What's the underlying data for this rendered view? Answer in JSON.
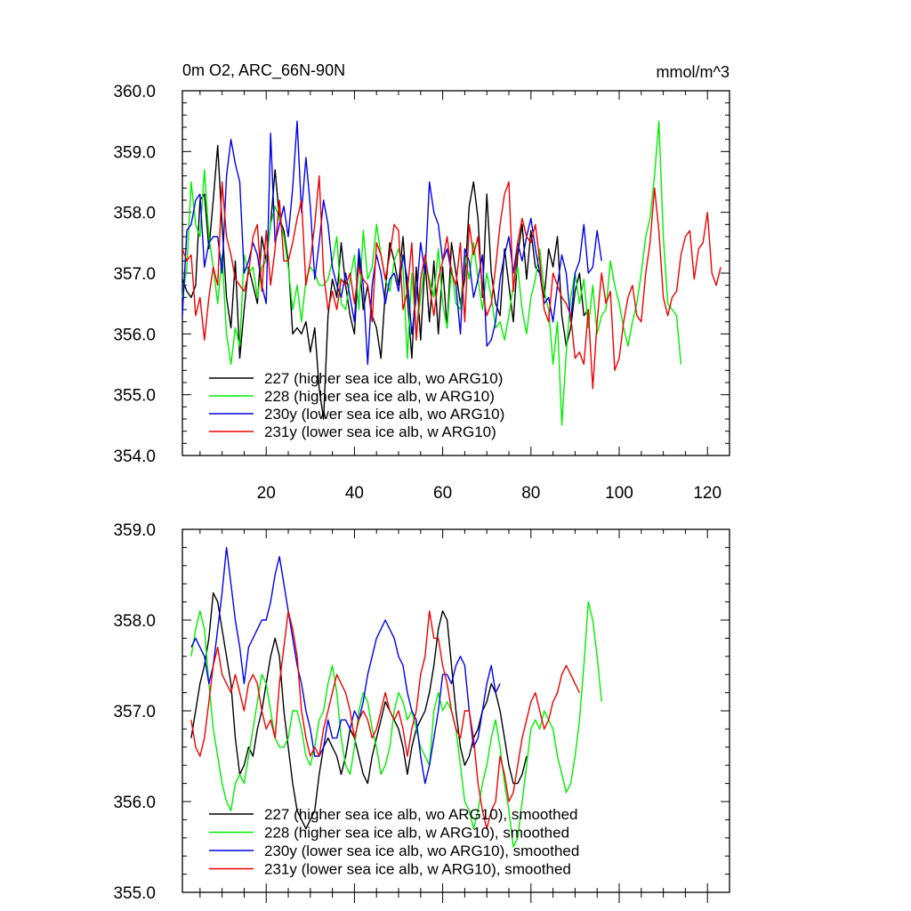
{
  "header": {
    "title": "0m O2, ARC_66N-90N",
    "units": "mmol/m^3"
  },
  "colors": {
    "227": "#000000",
    "228": "#00ee00",
    "230y": "#0000ee",
    "231y": "#ee0000"
  },
  "chart_data": [
    {
      "type": "line",
      "xlim": [
        1,
        125
      ],
      "ylim": [
        354,
        360
      ],
      "xticks": [
        20,
        40,
        60,
        80,
        100,
        120
      ],
      "yticks": [
        "354.0",
        "355.0",
        "356.0",
        "357.0",
        "358.0",
        "359.0",
        "360.0"
      ],
      "legend_position": "bottom-left",
      "series": [
        {
          "name": "227 (higher sea ice alb, wo ARG10)",
          "key": "227",
          "x_start": 1,
          "values": [
            356.9,
            356.7,
            356.6,
            356.8,
            358.2,
            358.3,
            357.4,
            358.2,
            359.1,
            357.8,
            356.6,
            356.1,
            357.2,
            355.6,
            356.4,
            357.1,
            356.8,
            356.5,
            357.6,
            357.2,
            357.8,
            358.7,
            357.9,
            357.7,
            357.2,
            356.0,
            356.1,
            356.0,
            356.2,
            355.7,
            356.1,
            355.1,
            354.6,
            356.3,
            356.9,
            356.6,
            357.5,
            356.8,
            356.3,
            356.0,
            357.3,
            356.4,
            356.8,
            356.3,
            356.1,
            355.6,
            356.7,
            357.5,
            357.2,
            356.8,
            357.6,
            356.6,
            355.6,
            357.1,
            355.9,
            357.2,
            356.2,
            357.2,
            356.0,
            357.1,
            356.1,
            357.5,
            357.0,
            356.5,
            356.9,
            358.1,
            358.5,
            357.9,
            356.6,
            358.3,
            357.0,
            356.5,
            356.3,
            357.4,
            356.8,
            356.2,
            357.3,
            357.8,
            356.9,
            357.7,
            357.1,
            357.0,
            356.6,
            357.4,
            357.1,
            357.6,
            356.3,
            355.8,
            356.1,
            356.7,
            357.0,
            356.3,
            356.4
          ]
        },
        {
          "name": "228 (higher sea ice alb, w ARG10)",
          "key": "228",
          "x_start": 1,
          "values": [
            356.6,
            357.1,
            358.5,
            357.8,
            357.6,
            358.7,
            357.6,
            357.1,
            356.5,
            357.3,
            356.0,
            355.5,
            356.1,
            355.8,
            357.3,
            357.0,
            357.1,
            356.6,
            357.1,
            357.2,
            357.8,
            358.1,
            357.9,
            357.6,
            357.1,
            356.4,
            356.8,
            356.2,
            356.9,
            357.1,
            357.0,
            356.8,
            356.8,
            356.9,
            357.2,
            357.6,
            356.5,
            356.4,
            356.9,
            357.3,
            356.4,
            357.7,
            356.9,
            357.1,
            357.8,
            357.3,
            356.9,
            356.7,
            357.2,
            357.4,
            357.1,
            355.6,
            357.0,
            356.0,
            356.6,
            357.2,
            356.9,
            356.6,
            357.4,
            356.5,
            356.1,
            357.1,
            356.5,
            356.4,
            357.3,
            356.9,
            357.5,
            356.9,
            356.4,
            357.0,
            356.6,
            356.1,
            356.2,
            355.9,
            356.3,
            356.8,
            357.1,
            356.4,
            356.0,
            356.6,
            356.9,
            357.4,
            356.7,
            356.4,
            355.5,
            356.2,
            354.5,
            355.7,
            356.6,
            357.0,
            356.5,
            356.9,
            356.1,
            356.8,
            356.0,
            356.3,
            356.4,
            357.2,
            356.8,
            356.5,
            356.1,
            355.8,
            356.2,
            356.5,
            357.0,
            357.6,
            357.9,
            358.6,
            359.5,
            357.6,
            356.5,
            356.4,
            356.3,
            355.5
          ]
        },
        {
          "name": "230y (lower sea ice alb, wo ARG10)",
          "key": "230y",
          "x_start": 1,
          "values": [
            356.3,
            357.7,
            357.8,
            358.2,
            358.3,
            357.1,
            357.5,
            357.6,
            357.6,
            357.0,
            358.6,
            359.2,
            358.8,
            358.5,
            357.0,
            357.2,
            357.5,
            357.3,
            356.8,
            356.5,
            359.3,
            357.5,
            357.8,
            358.1,
            357.6,
            358.4,
            359.5,
            358.0,
            358.9,
            358.1,
            356.9,
            357.5,
            358.2,
            357.8,
            357.1,
            356.8,
            356.6,
            357.0,
            356.6,
            356.2,
            357.4,
            356.8,
            355.5,
            356.8,
            357.3,
            357.0,
            356.5,
            356.9,
            357.0,
            356.7,
            357.3,
            356.9,
            356.0,
            356.6,
            357.5,
            357.0,
            358.5,
            358.0,
            357.8,
            357.2,
            357.4,
            357.0,
            356.8,
            356.0,
            357.4,
            357.2,
            356.6,
            356.9,
            357.3,
            355.8,
            355.9,
            356.2,
            356.9,
            357.3,
            357.6,
            357.0,
            357.5,
            357.2,
            357.6,
            357.9,
            357.4,
            357.0,
            356.5,
            356.6,
            356.2,
            356.8,
            357.3,
            357.0,
            356.2,
            357.0,
            357.2,
            357.8,
            357.0,
            357.1,
            357.7,
            357.2
          ]
        },
        {
          "name": "231y (lower sea ice alb, w ARG10)",
          "key": "231y",
          "x_start": 1,
          "values": [
            357.4,
            357.2,
            357.3,
            356.3,
            356.6,
            355.9,
            356.6,
            357.1,
            356.8,
            358.5,
            357.6,
            357.3,
            356.9,
            356.8,
            356.7,
            357.0,
            357.6,
            357.8,
            356.7,
            357.7,
            356.8,
            357.4,
            358.2,
            357.2,
            357.2,
            357.5,
            357.9,
            358.2,
            356.8,
            357.2,
            357.8,
            358.6,
            357.0,
            356.4,
            356.7,
            356.4,
            356.9,
            356.8,
            357.0,
            356.5,
            357.1,
            356.9,
            356.8,
            356.2,
            357.5,
            357.3,
            356.9,
            357.3,
            357.8,
            357.7,
            356.4,
            356.7,
            357.5,
            355.9,
            356.9,
            357.3,
            356.8,
            356.3,
            356.9,
            357.2,
            357.6,
            357.0,
            356.8,
            357.5,
            356.2,
            357.8,
            357.3,
            357.6,
            356.7,
            356.3,
            356.5,
            357.1,
            357.8,
            358.3,
            358.5,
            356.7,
            357.5,
            357.9,
            357.6,
            357.5,
            357.8,
            357.2,
            356.4,
            356.2,
            357.0,
            356.8,
            356.6,
            356.5,
            356.3,
            355.6,
            355.7,
            355.5,
            356.4,
            355.1,
            356.2,
            357.0,
            356.5,
            356.7,
            355.4,
            355.6,
            356.2,
            356.6,
            356.8,
            356.3,
            356.2,
            357.0,
            357.5,
            358.4,
            357.7,
            356.6,
            356.3,
            356.6,
            356.7,
            357.3,
            357.6,
            357.7,
            356.9,
            357.4,
            357.5,
            358.0,
            357.0,
            356.8,
            357.1
          ]
        }
      ]
    },
    {
      "type": "line",
      "xlim": [
        1,
        125
      ],
      "ylim": [
        355,
        359
      ],
      "yticks": [
        "355.0",
        "356.0",
        "357.0",
        "358.0",
        "359.0"
      ],
      "legend_position": "bottom-left",
      "series": [
        {
          "name": "227 (higher sea ice alb, wo ARG10), smoothed",
          "key": "227",
          "x_start": 3,
          "values": [
            356.7,
            357.0,
            357.3,
            357.5,
            357.8,
            358.3,
            358.2,
            357.9,
            357.6,
            357.3,
            356.7,
            356.3,
            356.4,
            356.6,
            356.5,
            356.8,
            357.0,
            357.3,
            357.6,
            357.8,
            357.6,
            357.0,
            356.6,
            356.2,
            355.9,
            355.8,
            355.7,
            355.8,
            355.9,
            356.3,
            356.6,
            356.7,
            356.6,
            356.5,
            356.3,
            356.5,
            356.8,
            356.7,
            356.5,
            356.3,
            356.2,
            356.5,
            356.7,
            356.9,
            357.1,
            357.0,
            356.9,
            356.8,
            356.6,
            356.3,
            356.6,
            356.8,
            356.9,
            357.0,
            357.2,
            357.5,
            357.9,
            358.1,
            358.0,
            357.5,
            357.0,
            356.6,
            356.4,
            356.5,
            356.7,
            356.8,
            357.0,
            357.1,
            357.3,
            357.2,
            357.0,
            356.7,
            356.4,
            356.2,
            356.2,
            356.3,
            356.5
          ]
        },
        {
          "name": "228 (higher sea ice alb, w ARG10), smoothed",
          "key": "228",
          "x_start": 3,
          "values": [
            357.6,
            357.9,
            358.1,
            357.9,
            357.3,
            356.8,
            356.5,
            356.2,
            356.0,
            355.9,
            356.2,
            356.3,
            356.2,
            356.5,
            356.8,
            357.1,
            357.4,
            357.3,
            357.0,
            356.7,
            356.6,
            356.6,
            356.7,
            357.0,
            357.0,
            356.8,
            356.5,
            356.4,
            356.6,
            356.9,
            357.0,
            357.3,
            357.5,
            357.2,
            356.7,
            356.4,
            356.3,
            356.6,
            357.0,
            357.2,
            357.1,
            356.8,
            356.6,
            356.3,
            356.4,
            356.6,
            357.0,
            357.2,
            357.1,
            356.9,
            357.0,
            356.8,
            356.6,
            356.5,
            356.4,
            357.0,
            357.2,
            357.0,
            357.1,
            357.0,
            356.8,
            356.4,
            356.0,
            355.9,
            355.7,
            355.9,
            356.2,
            356.4,
            356.7,
            356.9,
            356.6,
            356.2,
            355.9,
            355.5,
            355.6,
            356.0,
            356.4,
            356.8,
            356.9,
            356.8,
            357.0,
            356.9,
            356.8,
            356.5,
            356.3,
            356.1,
            356.2,
            356.5,
            356.9,
            357.5,
            358.2,
            358.0,
            357.6,
            357.1
          ]
        },
        {
          "name": "230y (lower sea ice alb, wo ARG10), smoothed",
          "key": "230y",
          "x_start": 3,
          "values": [
            357.7,
            357.8,
            357.7,
            357.6,
            357.3,
            357.5,
            357.9,
            358.3,
            358.8,
            358.4,
            358.0,
            357.7,
            357.3,
            357.7,
            357.8,
            357.9,
            358.0,
            358.0,
            358.2,
            358.5,
            358.7,
            358.4,
            358.1,
            357.8,
            357.5,
            357.3,
            357.0,
            356.8,
            356.5,
            356.5,
            356.6,
            356.9,
            356.7,
            356.7,
            356.9,
            356.9,
            356.8,
            357.0,
            356.9,
            357.1,
            357.4,
            357.6,
            357.8,
            357.9,
            358.0,
            357.9,
            357.8,
            357.6,
            357.5,
            357.2,
            357.0,
            356.9,
            356.5,
            356.2,
            356.4,
            356.7,
            357.0,
            357.4,
            357.4,
            357.3,
            357.5,
            357.6,
            357.5,
            357.0,
            356.6,
            356.7,
            357.0,
            357.3,
            357.5,
            357.2,
            357.3
          ]
        },
        {
          "name": "231y (lower sea ice alb, w ARG10), smoothed",
          "key": "231y",
          "x_start": 3,
          "values": [
            356.9,
            356.6,
            356.5,
            356.7,
            357.1,
            357.5,
            357.7,
            357.4,
            357.3,
            357.2,
            357.4,
            357.2,
            357.0,
            357.3,
            357.4,
            357.3,
            357.0,
            356.8,
            356.9,
            356.7,
            357.3,
            357.7,
            358.1,
            357.9,
            357.6,
            357.0,
            356.7,
            356.5,
            356.6,
            356.5,
            356.8,
            357.0,
            357.2,
            357.4,
            357.3,
            357.2,
            357.0,
            356.7,
            356.9,
            357.0,
            356.9,
            356.7,
            356.8,
            357.0,
            357.2,
            357.0,
            356.9,
            357.0,
            356.8,
            356.5,
            356.8,
            357.0,
            357.4,
            357.6,
            358.1,
            357.8,
            357.8,
            357.5,
            357.3,
            357.0,
            356.8,
            356.7,
            357.0,
            357.0,
            356.7,
            356.2,
            355.9,
            355.7,
            355.9,
            356.0,
            356.5,
            356.3,
            356.0,
            356.1,
            356.4,
            356.7,
            356.9,
            357.1,
            357.2,
            357.0,
            356.8,
            356.9,
            357.1,
            357.2,
            357.4,
            357.5,
            357.4,
            357.3,
            357.2
          ]
        }
      ]
    }
  ]
}
